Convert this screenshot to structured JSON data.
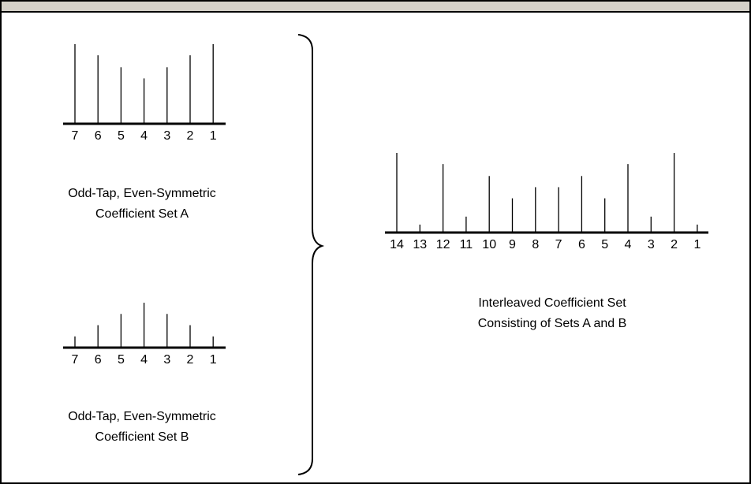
{
  "diagram": {
    "set_a": {
      "indices": [
        "7",
        "6",
        "5",
        "4",
        "3",
        "2",
        "1"
      ],
      "relative_heights": [
        1.0,
        0.86,
        0.71,
        0.57,
        0.71,
        0.86,
        1.0
      ],
      "caption_line1": "Odd-Tap, Even-Symmetric",
      "caption_line2": "Coefficient Set A"
    },
    "set_b": {
      "indices": [
        "7",
        "6",
        "5",
        "4",
        "3",
        "2",
        "1"
      ],
      "relative_heights": [
        0.25,
        0.5,
        0.75,
        1.0,
        0.75,
        0.5,
        0.25
      ],
      "caption_line1": "Odd-Tap, Even-Symmetric",
      "caption_line2": "Coefficient Set B"
    },
    "interleaved": {
      "indices": [
        "14",
        "13",
        "12",
        "11",
        "10",
        "9",
        "8",
        "7",
        "6",
        "5",
        "4",
        "3",
        "2",
        "1"
      ],
      "relative_heights": [
        1.0,
        0.1,
        0.86,
        0.2,
        0.71,
        0.43,
        0.57,
        0.57,
        0.71,
        0.43,
        0.86,
        0.2,
        1.0,
        0.1
      ],
      "caption_line1": "Interleaved Coefficient Set",
      "caption_line2": "Consisting of Sets A and B"
    }
  }
}
